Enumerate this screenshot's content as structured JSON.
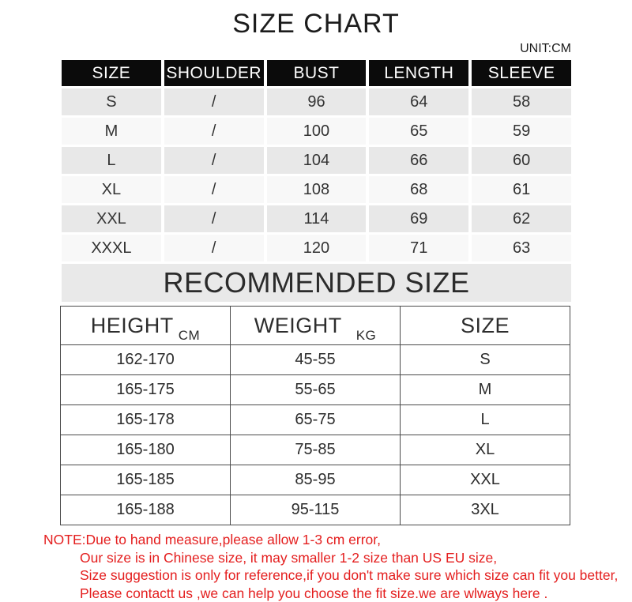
{
  "page": {
    "title": "SIZE CHART",
    "unit_label": "UNIT:CM"
  },
  "colors": {
    "header_bg": "#0b0b0b",
    "row_gray": "#e8e8e8",
    "row_light": "#f8f8f8",
    "band_bg": "#e9e9e9",
    "note_red": "#e41e1e"
  },
  "size_table": {
    "headers": [
      "SIZE",
      "SHOULDER",
      "BUST",
      "LENGTH",
      "SLEEVE"
    ],
    "rows": [
      [
        "S",
        "/",
        "96",
        "64",
        "58"
      ],
      [
        "M",
        "/",
        "100",
        "65",
        "59"
      ],
      [
        "L",
        "/",
        "104",
        "66",
        "60"
      ],
      [
        "XL",
        "/",
        "108",
        "68",
        "61"
      ],
      [
        "XXL",
        "/",
        "114",
        "69",
        "62"
      ],
      [
        "XXXL",
        "/",
        "120",
        "71",
        "63"
      ]
    ]
  },
  "recommended": {
    "heading": "RECOMMENDED SIZE",
    "headers": [
      {
        "label": "HEIGHT",
        "unit": "CM"
      },
      {
        "label": "WEIGHT",
        "unit": "KG"
      },
      {
        "label": "SIZE",
        "unit": ""
      }
    ],
    "rows": [
      [
        "162-170",
        "45-55",
        "S"
      ],
      [
        "165-175",
        "55-65",
        "M"
      ],
      [
        "165-178",
        "65-75",
        "L"
      ],
      [
        "165-180",
        "75-85",
        "XL"
      ],
      [
        "165-185",
        "85-95",
        "XXL"
      ],
      [
        "165-188",
        "95-115",
        "3XL"
      ]
    ]
  },
  "note": {
    "lines": [
      "NOTE:Due to hand measure,please allow 1-3 cm error,",
      "Our size is in Chinese size, it may smaller 1-2 size than US EU size,",
      "Size suggestion is only for reference,if you don't make sure which size can fit you better,",
      "Please contactt us ,we can help you choose the fit size.we are wlways here ."
    ]
  }
}
